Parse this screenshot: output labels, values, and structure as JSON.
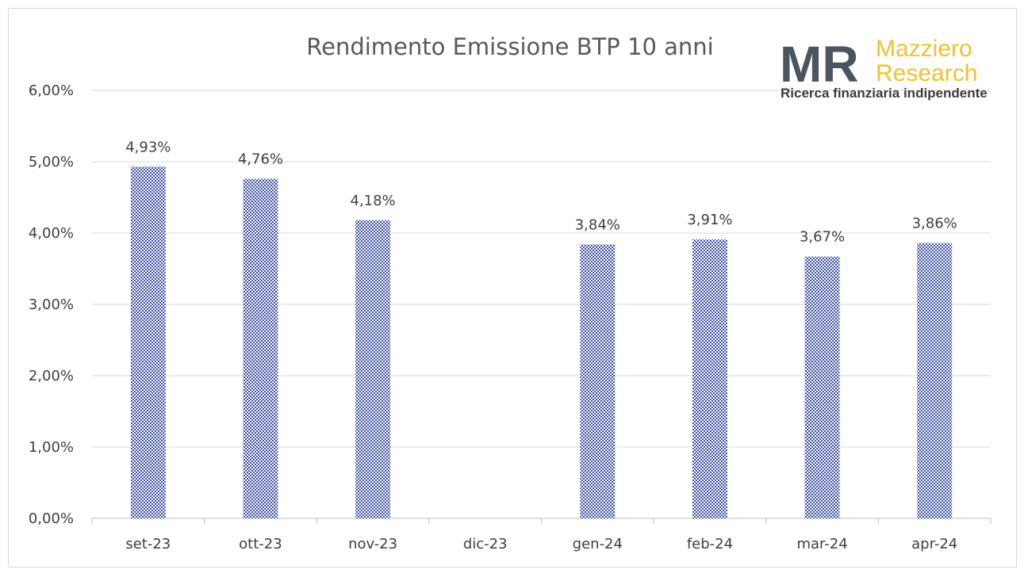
{
  "chart_data": {
    "type": "bar",
    "title": "Rendimento Emissione BTP 10 anni",
    "categories": [
      "set-23",
      "ott-23",
      "nov-23",
      "dic-23",
      "gen-24",
      "feb-24",
      "mar-24",
      "apr-24"
    ],
    "values": [
      4.93,
      4.76,
      4.18,
      null,
      3.84,
      3.91,
      3.67,
      3.86
    ],
    "data_labels": [
      "4,93%",
      "4,76%",
      "4,18%",
      "",
      "3,84%",
      "3,91%",
      "3,67%",
      "3,86%"
    ],
    "y_ticks": [
      0,
      1,
      2,
      3,
      4,
      5,
      6
    ],
    "y_tick_labels": [
      "0,00%",
      "1,00%",
      "2,00%",
      "3,00%",
      "4,00%",
      "5,00%",
      "6,00%"
    ],
    "ylim": [
      0,
      6
    ],
    "xlabel": "",
    "ylabel": "",
    "grid": true,
    "legend": "none",
    "bar_color": "#3b4fb0",
    "bar_pattern": "checkered"
  },
  "logo": {
    "monogram": "MR",
    "brand_line1": "Mazziero",
    "brand_line2": "Research",
    "tagline": "Ricerca finanziaria indipendente",
    "monogram_color": "#4a5560",
    "brand_color": "#f2c12e"
  }
}
